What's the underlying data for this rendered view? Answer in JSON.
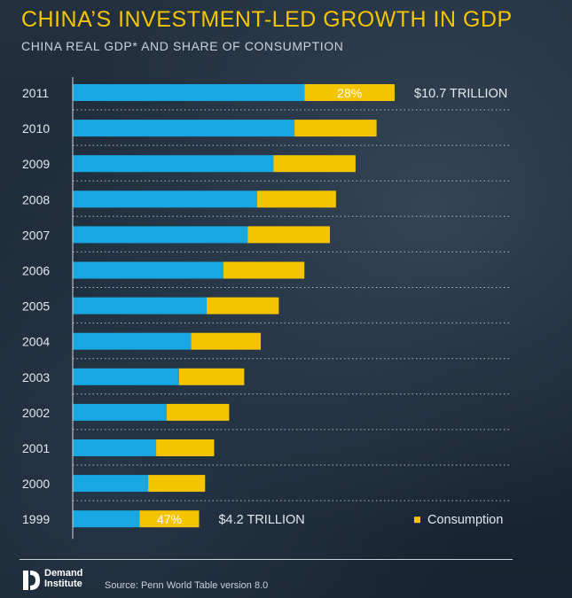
{
  "title": "CHINA’S INVESTMENT-LED GROWTH IN GDP",
  "subtitle": "CHINA REAL GDP* AND SHARE OF CONSUMPTION",
  "colors": {
    "investment": "#17a8e3",
    "consumption": "#f5c400",
    "title": "#f5c400"
  },
  "legend": {
    "label": "Consumption",
    "position": "bottom-right"
  },
  "chart_data": {
    "type": "bar",
    "orientation": "horizontal",
    "stacked": true,
    "categories": [
      "2011",
      "2010",
      "2009",
      "2008",
      "2007",
      "2006",
      "2005",
      "2004",
      "2003",
      "2002",
      "2001",
      "2000",
      "1999"
    ],
    "total_gdp_trillion": [
      10.7,
      10.1,
      9.4,
      8.75,
      8.55,
      7.7,
      6.85,
      6.25,
      5.7,
      5.2,
      4.7,
      4.4,
      4.2
    ],
    "consumption_share": [
      0.28,
      0.27,
      0.29,
      0.3,
      0.32,
      0.35,
      0.35,
      0.37,
      0.38,
      0.4,
      0.41,
      0.43,
      0.47
    ],
    "bar_labels": [
      {
        "year": "2011",
        "consumption": "28%",
        "total": "$10.7 TRILLION"
      },
      {
        "year": "1999",
        "consumption": "47%",
        "total": "$4.2 TRILLION"
      }
    ],
    "xlim": [
      0,
      10.7
    ],
    "grid": "dotted row separators"
  },
  "footer": {
    "logo_line1": "Demand",
    "logo_line2": "Institute",
    "source": "Source: Penn World Table version 8.0"
  }
}
